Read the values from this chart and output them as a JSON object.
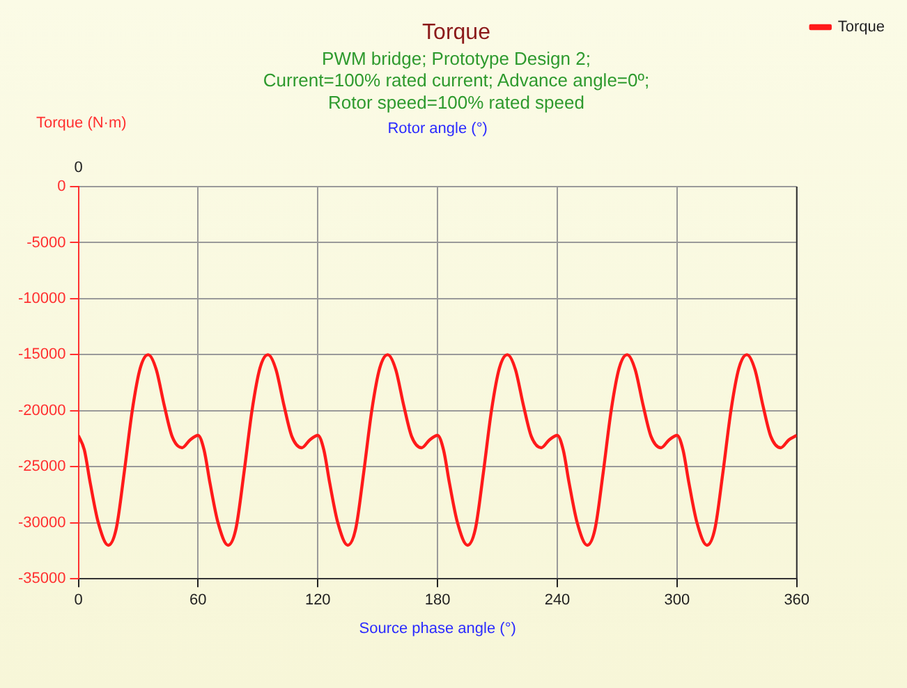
{
  "chart_data": {
    "type": "line",
    "title": "Torque",
    "subtitle": "PWM bridge; Prototype Design 2;\nCurrent=100% rated current; Advance angle=0º;\nRotor speed=100% rated speed",
    "xlabel": "Source phase angle (°)",
    "ylabel": "Torque (N·m)",
    "annotations": [
      "Rotor angle (°)",
      "0"
    ],
    "x": [
      0,
      3,
      6,
      10,
      15,
      19,
      23,
      27,
      31,
      35,
      39,
      43,
      47,
      52,
      56,
      60,
      63,
      66,
      70,
      75,
      79,
      83,
      87,
      91,
      95,
      99,
      103,
      107,
      112,
      116,
      120,
      123,
      126,
      130,
      135,
      139,
      143,
      147,
      151,
      155,
      159,
      163,
      167,
      172,
      176,
      180,
      183,
      186,
      190,
      195,
      199,
      203,
      207,
      211,
      215,
      219,
      223,
      227,
      232,
      236,
      240,
      243,
      246,
      250,
      255,
      259,
      263,
      267,
      271,
      275,
      279,
      283,
      287,
      292,
      296,
      300,
      303,
      306,
      310,
      315,
      319,
      323,
      327,
      331,
      335,
      339,
      343,
      347,
      352,
      356,
      360
    ],
    "series": [
      {
        "name": "Torque",
        "color": "#ff1a1a",
        "values": [
          -22200,
          -23500,
          -26500,
          -30000,
          -32000,
          -30500,
          -25500,
          -20000,
          -16200,
          -15000,
          -16300,
          -19500,
          -22300,
          -23300,
          -22600,
          -22200,
          -23500,
          -26500,
          -30000,
          -32000,
          -30500,
          -25500,
          -20000,
          -16200,
          -15000,
          -16300,
          -19500,
          -22300,
          -23300,
          -22600,
          -22200,
          -23500,
          -26500,
          -30000,
          -32000,
          -30500,
          -25500,
          -20000,
          -16200,
          -15000,
          -16300,
          -19500,
          -22300,
          -23300,
          -22600,
          -22200,
          -23500,
          -26500,
          -30000,
          -32000,
          -30500,
          -25500,
          -20000,
          -16200,
          -15000,
          -16300,
          -19500,
          -22300,
          -23300,
          -22600,
          -22200,
          -23500,
          -26500,
          -30000,
          -32000,
          -30500,
          -25500,
          -20000,
          -16200,
          -15000,
          -16300,
          -19500,
          -22300,
          -23300,
          -22600,
          -22200,
          -23500,
          -26500,
          -30000,
          -32000,
          -30500,
          -25500,
          -20000,
          -16200,
          -15000,
          -16300,
          -19500,
          -22300,
          -23300,
          -22600,
          -22200
        ]
      }
    ],
    "xlim": [
      0,
      360
    ],
    "xticks": [
      0,
      60,
      120,
      180,
      240,
      300,
      360
    ],
    "ylim": [
      -35000,
      0
    ],
    "yticks": [
      -35000,
      -30000,
      -25000,
      -20000,
      -15000,
      -10000,
      -5000,
      0
    ],
    "grid": true,
    "legend": "right",
    "marker": "none",
    "line_style": "solid"
  }
}
